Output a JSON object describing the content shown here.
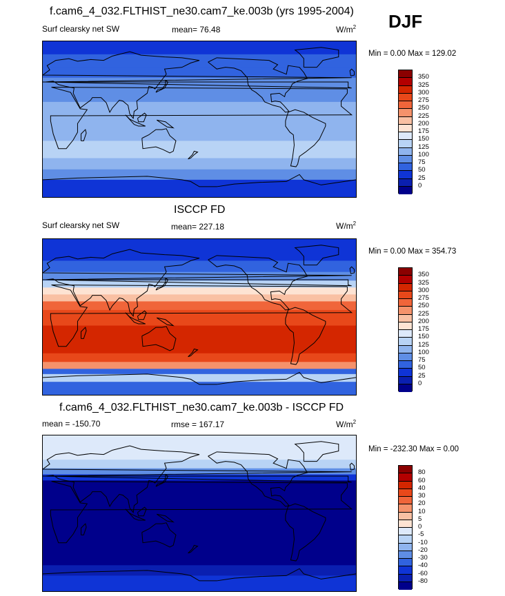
{
  "season": "DJF",
  "panels": [
    {
      "title": "f.cam6_4_032.FLTHIST_ne30.cam7_ke.003b (yrs 1995-2004)",
      "left_label": "Surf clearsky net SW",
      "center_label": "mean=  76.48",
      "units_label": "W/m",
      "units_sup": "2",
      "minmax": "Min =   0.00 Max = 129.02",
      "colorbar_ticks": [
        "350",
        "325",
        "300",
        "275",
        "250",
        "225",
        "200",
        "175",
        "150",
        "125",
        "100",
        "75",
        "50",
        "25",
        "0"
      ],
      "colors": [
        "#8b0000",
        "#b30000",
        "#d42600",
        "#e8481a",
        "#f0653a",
        "#f5926b",
        "#f9c0a3",
        "#fde3d3",
        "#dde9fa",
        "#b8d3f5",
        "#8fb4ee",
        "#5f8ee5",
        "#3163df",
        "#0f34d6",
        "#0a1fb0",
        "#00008b"
      ],
      "field_bands": [
        {
          "lat_top": 90,
          "lat_bot": 75,
          "color": "#0f34d6"
        },
        {
          "lat_top": 75,
          "lat_bot": 60,
          "color": "#3163df"
        },
        {
          "lat_top": 60,
          "lat_bot": 48,
          "color": "#3163df"
        },
        {
          "lat_top": 48,
          "lat_bot": 35,
          "color": "#5f8ee5"
        },
        {
          "lat_top": 35,
          "lat_bot": 20,
          "color": "#5f8ee5"
        },
        {
          "lat_top": 20,
          "lat_bot": 0,
          "color": "#8fb4ee"
        },
        {
          "lat_top": 0,
          "lat_bot": -25,
          "color": "#8fb4ee"
        },
        {
          "lat_top": -25,
          "lat_bot": -45,
          "color": "#b8d3f5"
        },
        {
          "lat_top": -45,
          "lat_bot": -58,
          "color": "#8fb4ee"
        },
        {
          "lat_top": -58,
          "lat_bot": -70,
          "color": "#5f8ee5"
        },
        {
          "lat_top": -70,
          "lat_bot": -90,
          "color": "#0f34d6"
        }
      ]
    },
    {
      "title": "ISCCP FD",
      "left_label": "Surf clearsky net SW",
      "center_label": "mean= 227.18",
      "units_label": "W/m",
      "units_sup": "2",
      "minmax": "Min =   0.00 Max = 354.73",
      "colorbar_ticks": [
        "350",
        "325",
        "300",
        "275",
        "250",
        "225",
        "200",
        "175",
        "150",
        "125",
        "100",
        "75",
        "50",
        "25",
        "0"
      ],
      "colors": [
        "#8b0000",
        "#b30000",
        "#d42600",
        "#e8481a",
        "#f0653a",
        "#f5926b",
        "#f9c0a3",
        "#fde3d3",
        "#dde9fa",
        "#b8d3f5",
        "#8fb4ee",
        "#5f8ee5",
        "#3163df",
        "#0f34d6",
        "#0a1fb0",
        "#00008b"
      ],
      "field_bands": [
        {
          "lat_top": 90,
          "lat_bot": 65,
          "color": "#0f34d6"
        },
        {
          "lat_top": 65,
          "lat_bot": 52,
          "color": "#3163df"
        },
        {
          "lat_top": 52,
          "lat_bot": 42,
          "color": "#5f8ee5"
        },
        {
          "lat_top": 42,
          "lat_bot": 34,
          "color": "#b8d3f5"
        },
        {
          "lat_top": 34,
          "lat_bot": 26,
          "color": "#fde3d3"
        },
        {
          "lat_top": 26,
          "lat_bot": 18,
          "color": "#f9c0a3"
        },
        {
          "lat_top": 18,
          "lat_bot": 8,
          "color": "#f0653a"
        },
        {
          "lat_top": 8,
          "lat_bot": -10,
          "color": "#e8481a"
        },
        {
          "lat_top": -10,
          "lat_bot": -42,
          "color": "#d42600"
        },
        {
          "lat_top": -42,
          "lat_bot": -52,
          "color": "#e8481a"
        },
        {
          "lat_top": -52,
          "lat_bot": -60,
          "color": "#f5926b"
        },
        {
          "lat_top": -60,
          "lat_bot": -66,
          "color": "#3163df"
        },
        {
          "lat_top": -66,
          "lat_bot": -75,
          "color": "#b8d3f5"
        },
        {
          "lat_top": -75,
          "lat_bot": -90,
          "color": "#3163df"
        }
      ]
    },
    {
      "title": "f.cam6_4_032.FLTHIST_ne30.cam7_ke.003b - ISCCP FD",
      "left_label": "mean = -150.70",
      "center_label": "rmse = 167.17",
      "units_label": "W/m",
      "units_sup": "2",
      "minmax": "Min = -232.30 Max =   0.00",
      "colorbar_ticks": [
        "80",
        "60",
        "40",
        "30",
        "20",
        "10",
        "5",
        "0",
        "-5",
        "-10",
        "-20",
        "-30",
        "-40",
        "-60",
        "-80"
      ],
      "colors": [
        "#8b0000",
        "#b30000",
        "#d42600",
        "#e8481a",
        "#f0653a",
        "#f5926b",
        "#f9c0a3",
        "#fde3d3",
        "#dde9fa",
        "#b8d3f5",
        "#8fb4ee",
        "#5f8ee5",
        "#3163df",
        "#0f34d6",
        "#0a1fb0",
        "#00008b"
      ],
      "field_bands": [
        {
          "lat_top": 90,
          "lat_bot": 62,
          "color": "#dde9fa"
        },
        {
          "lat_top": 62,
          "lat_bot": 52,
          "color": "#b8d3f5"
        },
        {
          "lat_top": 52,
          "lat_bot": 45,
          "color": "#5f8ee5"
        },
        {
          "lat_top": 45,
          "lat_bot": 38,
          "color": "#0f34d6"
        },
        {
          "lat_top": 38,
          "lat_bot": -60,
          "color": "#00008b"
        },
        {
          "lat_top": -60,
          "lat_bot": -72,
          "color": "#0a1fb0"
        },
        {
          "lat_top": -72,
          "lat_bot": -90,
          "color": "#0f34d6"
        }
      ]
    }
  ]
}
